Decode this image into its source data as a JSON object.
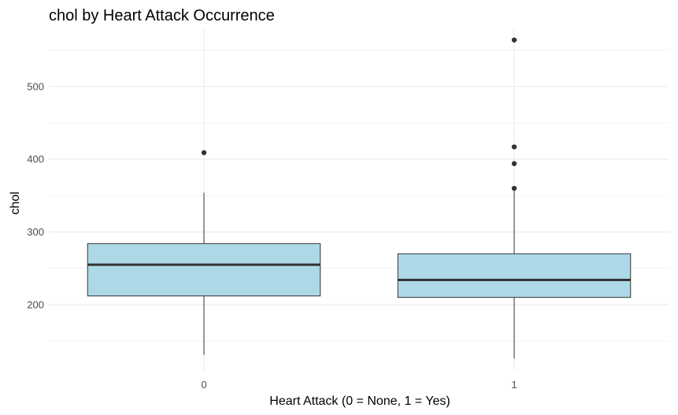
{
  "chart_data": {
    "type": "boxplot",
    "title": "chol by Heart Attack Occurrence",
    "xlabel": "Heart Attack (0 = None, 1 = Yes)",
    "ylabel": "chol",
    "categories": [
      "0",
      "1"
    ],
    "y_ticks": [
      200,
      300,
      400,
      500
    ],
    "ylim": [
      110,
      580
    ],
    "grid": true,
    "box_color": "#add8e6",
    "line_color": "#333333",
    "grid_color": "#ebebeb",
    "boxes": [
      {
        "category": "0",
        "whisker_low": 131,
        "q1": 212,
        "median": 255,
        "q3": 284,
        "whisker_high": 354,
        "outliers": [
          409
        ]
      },
      {
        "category": "1",
        "whisker_low": 126,
        "q1": 210,
        "median": 234,
        "q3": 270,
        "whisker_high": 360,
        "outliers": [
          564,
          417,
          394,
          360
        ]
      }
    ]
  }
}
